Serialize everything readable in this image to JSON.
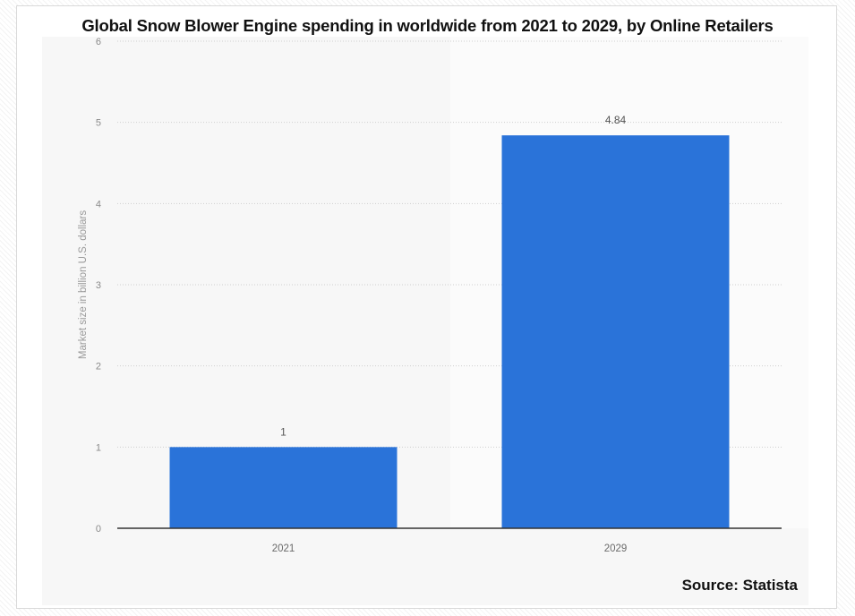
{
  "chart_data": {
    "type": "bar",
    "title": "Global Snow Blower Engine spending in worldwide from 2021 to 2029, by Online Retailers",
    "categories": [
      "2021",
      "2029"
    ],
    "values": [
      1,
      4.84
    ],
    "data_labels": [
      "1",
      "4.84"
    ],
    "xlabel": "",
    "ylabel": "Market size in billion U.S. dollars",
    "ylim": [
      0,
      6
    ],
    "yticks": [
      0,
      1,
      2,
      3,
      4,
      5,
      6
    ],
    "ytick_labels": [
      "0",
      "1",
      "2",
      "3",
      "4",
      "5",
      "6"
    ],
    "grid": true,
    "legend": "none",
    "bar_color": "#2a73d9",
    "source": "Source: Statista"
  }
}
